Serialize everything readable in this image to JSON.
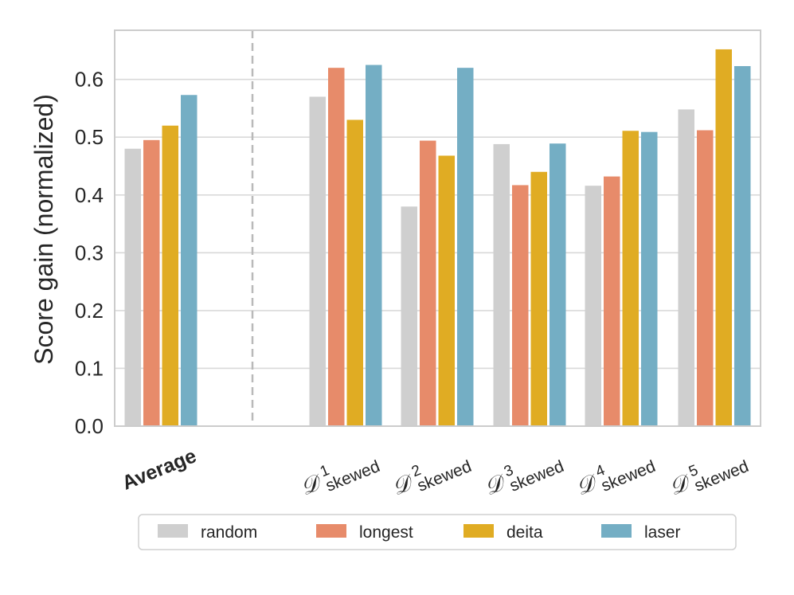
{
  "chart_data": {
    "type": "bar",
    "xlabel": "",
    "ylabel": "Score gain (normalized)",
    "ylim": [
      0,
      0.685
    ],
    "yticks": [
      "0.0",
      "0.1",
      "0.2",
      "0.3",
      "0.4",
      "0.5",
      "0.6"
    ],
    "grid": "horizontal",
    "separator": "dashed vertical line after Average",
    "categories": [
      {
        "id": "average",
        "label": "Average"
      },
      {
        "id": "d1",
        "math": "𝒟",
        "sup": "1",
        "sub": "skewed"
      },
      {
        "id": "d2",
        "math": "𝒟",
        "sup": "2",
        "sub": "skewed"
      },
      {
        "id": "d3",
        "math": "𝒟",
        "sup": "3",
        "sub": "skewed"
      },
      {
        "id": "d4",
        "math": "𝒟",
        "sup": "4",
        "sub": "skewed"
      },
      {
        "id": "d5",
        "math": "𝒟",
        "sup": "5",
        "sub": "skewed"
      }
    ],
    "series": [
      {
        "name": "random",
        "color": "#cfcfcf",
        "values": [
          0.48,
          0.57,
          0.38,
          0.488,
          0.416,
          0.548
        ]
      },
      {
        "name": "longest",
        "color": "#e78b6a",
        "values": [
          0.495,
          0.62,
          0.494,
          0.417,
          0.432,
          0.512
        ]
      },
      {
        "name": "deita",
        "color": "#e0ac23",
        "values": [
          0.52,
          0.53,
          0.468,
          0.44,
          0.511,
          0.652
        ]
      },
      {
        "name": "laser",
        "color": "#74aec4",
        "values": [
          0.573,
          0.625,
          0.62,
          0.489,
          0.509,
          0.623
        ]
      }
    ],
    "legend_position": "bottom-center"
  }
}
